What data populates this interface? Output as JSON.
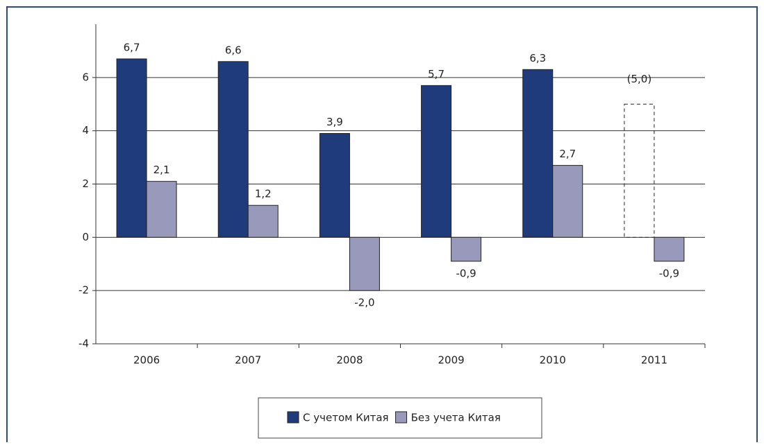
{
  "chart_data": {
    "type": "bar",
    "categories": [
      "2006",
      "2007",
      "2008",
      "2009",
      "2010",
      "2011"
    ],
    "series": [
      {
        "name": "С учетом Китая",
        "color": "#1f3b7c",
        "values": [
          6.7,
          6.6,
          3.9,
          5.7,
          6.3,
          5.0
        ],
        "value_labels": [
          "6,7",
          "6,6",
          "3,9",
          "5,7",
          "6,3",
          "(5,0)"
        ],
        "dashed": [
          false,
          false,
          false,
          false,
          false,
          true
        ]
      },
      {
        "name": "Без учета Китая",
        "color": "#9999bb",
        "values": [
          2.1,
          1.2,
          -2.0,
          -0.9,
          2.7,
          -0.9
        ],
        "value_labels": [
          "2,1",
          "1,2",
          "-2,0",
          "-0,9",
          "2,7",
          "-0,9"
        ]
      }
    ],
    "ylim": [
      -4,
      8
    ],
    "yticks": [
      -4,
      -2,
      0,
      2,
      4,
      6
    ],
    "grid": true,
    "legend": "bottom"
  }
}
